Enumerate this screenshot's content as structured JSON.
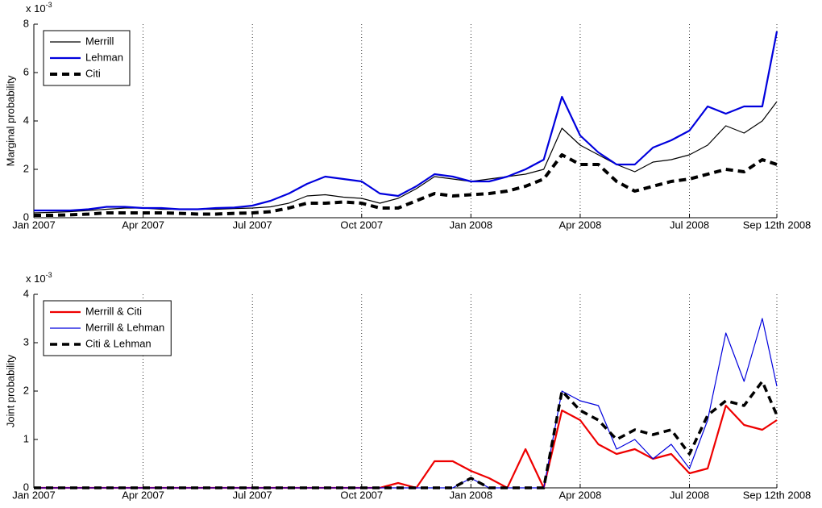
{
  "chart_data": [
    {
      "type": "line",
      "y_label": "Marginal probability",
      "y_scale_label": {
        "base": "x 10",
        "exponent": "-3"
      },
      "x": [
        0,
        0.5,
        1,
        1.5,
        2,
        2.5,
        3,
        3.5,
        4,
        4.5,
        5,
        5.5,
        6,
        6.5,
        7,
        7.5,
        8,
        8.5,
        9,
        9.5,
        10,
        10.5,
        11,
        11.5,
        12,
        12.5,
        13,
        13.5,
        14,
        14.5,
        15,
        15.5,
        16,
        16.5,
        17,
        17.5,
        18,
        18.5,
        19,
        19.5,
        20,
        20.4
      ],
      "xlim": [
        0,
        20.4
      ],
      "xticks": [
        {
          "value": 0,
          "label": "Jan 2007"
        },
        {
          "value": 3,
          "label": "Apr 2007"
        },
        {
          "value": 6,
          "label": "Jul 2007"
        },
        {
          "value": 9,
          "label": "Oct 2007"
        },
        {
          "value": 12,
          "label": "Jan 2008"
        },
        {
          "value": 15,
          "label": "Apr 2008"
        },
        {
          "value": 18,
          "label": "Jul 2008"
        },
        {
          "value": 20.4,
          "label": "Sep 12th 2008"
        }
      ],
      "ylim": [
        0,
        8
      ],
      "yticks": [
        0,
        2,
        4,
        6,
        8
      ],
      "grid": "x-dotted",
      "legend": "upper-left",
      "series": [
        {
          "name": "Merrill",
          "color": "#000000",
          "width": 1.2,
          "style": "solid",
          "values": [
            0.2,
            0.22,
            0.25,
            0.3,
            0.35,
            0.4,
            0.4,
            0.35,
            0.35,
            0.35,
            0.35,
            0.38,
            0.4,
            0.45,
            0.6,
            0.9,
            0.95,
            0.85,
            0.8,
            0.6,
            0.8,
            1.2,
            1.7,
            1.6,
            1.5,
            1.6,
            1.7,
            1.8,
            2.0,
            3.7,
            3.0,
            2.6,
            2.2,
            1.9,
            2.3,
            2.4,
            2.6,
            3.0,
            3.8,
            3.5,
            4.0,
            4.8
          ]
        },
        {
          "name": "Lehman",
          "color": "#0000dd",
          "width": 2.2,
          "style": "solid",
          "values": [
            0.3,
            0.3,
            0.3,
            0.35,
            0.45,
            0.45,
            0.4,
            0.4,
            0.35,
            0.35,
            0.4,
            0.42,
            0.5,
            0.7,
            1.0,
            1.4,
            1.7,
            1.6,
            1.5,
            1.0,
            0.9,
            1.3,
            1.8,
            1.7,
            1.5,
            1.5,
            1.7,
            2.0,
            2.4,
            5.0,
            3.4,
            2.7,
            2.2,
            2.2,
            2.9,
            3.2,
            3.6,
            4.6,
            4.3,
            4.6,
            4.6,
            7.7
          ]
        },
        {
          "name": "Citi",
          "color": "#000000",
          "width": 4,
          "style": "dashed",
          "values": [
            0.1,
            0.1,
            0.12,
            0.15,
            0.2,
            0.2,
            0.2,
            0.2,
            0.18,
            0.15,
            0.15,
            0.18,
            0.2,
            0.25,
            0.4,
            0.6,
            0.6,
            0.65,
            0.6,
            0.4,
            0.4,
            0.7,
            1.0,
            0.9,
            0.95,
            1.0,
            1.1,
            1.3,
            1.6,
            2.6,
            2.2,
            2.2,
            1.5,
            1.1,
            1.3,
            1.5,
            1.6,
            1.8,
            2.0,
            1.9,
            2.4,
            2.2
          ]
        }
      ]
    },
    {
      "type": "line",
      "y_label": "Joint probability",
      "y_scale_label": {
        "base": "x 10",
        "exponent": "-3"
      },
      "x": [
        0,
        0.5,
        1,
        1.5,
        2,
        2.5,
        3,
        3.5,
        4,
        4.5,
        5,
        5.5,
        6,
        6.5,
        7,
        7.5,
        8,
        8.5,
        9,
        9.5,
        10,
        10.5,
        11,
        11.5,
        12,
        12.5,
        13,
        13.5,
        14,
        14.5,
        15,
        15.5,
        16,
        16.5,
        17,
        17.5,
        18,
        18.5,
        19,
        19.5,
        20,
        20.4
      ],
      "xlim": [
        0,
        20.4
      ],
      "xticks": [
        {
          "value": 0,
          "label": "Jan 2007"
        },
        {
          "value": 3,
          "label": "Apr 2007"
        },
        {
          "value": 6,
          "label": "Jul 2007"
        },
        {
          "value": 9,
          "label": "Oct 2007"
        },
        {
          "value": 12,
          "label": "Jan 2008"
        },
        {
          "value": 15,
          "label": "Apr 2008"
        },
        {
          "value": 18,
          "label": "Jul 2008"
        },
        {
          "value": 20.4,
          "label": "Sep 12th 2008"
        }
      ],
      "ylim": [
        0,
        4
      ],
      "yticks": [
        0,
        1,
        2,
        3,
        4
      ],
      "grid": "x-dotted",
      "legend": "upper-left",
      "series": [
        {
          "name": "Merrill & Citi",
          "color": "#ee0000",
          "width": 2.2,
          "style": "solid",
          "values": [
            0,
            0,
            0,
            0,
            0,
            0,
            0,
            0,
            0,
            0,
            0,
            0,
            0,
            0,
            0,
            0,
            0,
            0,
            0,
            0,
            0.1,
            0,
            0.55,
            0.55,
            0.35,
            0.2,
            0,
            0.8,
            0,
            1.6,
            1.4,
            0.9,
            0.7,
            0.8,
            0.6,
            0.7,
            0.3,
            0.4,
            1.7,
            1.3,
            1.2,
            1.4
          ]
        },
        {
          "name": "Merrill & Lehman",
          "color": "#0000dd",
          "width": 1.2,
          "style": "solid",
          "values": [
            0,
            0,
            0,
            0,
            0,
            0,
            0,
            0,
            0,
            0,
            0,
            0,
            0,
            0,
            0,
            0,
            0,
            0,
            0,
            0,
            0,
            0,
            0,
            0,
            0.2,
            0,
            0,
            0,
            0,
            2.0,
            1.8,
            1.7,
            0.8,
            1.0,
            0.6,
            0.9,
            0.4,
            1.4,
            3.2,
            2.2,
            3.5,
            2.1
          ]
        },
        {
          "name": "Citi & Lehman",
          "color": "#000000",
          "width": 3.5,
          "style": "dashed",
          "values": [
            0,
            0,
            0,
            0,
            0,
            0,
            0,
            0,
            0,
            0,
            0,
            0,
            0,
            0,
            0,
            0,
            0,
            0,
            0,
            0,
            0,
            0,
            0,
            0,
            0.2,
            0,
            0,
            0,
            0,
            2.0,
            1.6,
            1.4,
            1.0,
            1.2,
            1.1,
            1.2,
            0.7,
            1.5,
            1.8,
            1.7,
            2.2,
            1.5
          ]
        }
      ]
    }
  ]
}
